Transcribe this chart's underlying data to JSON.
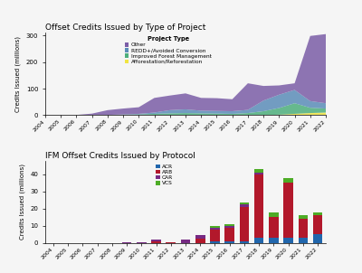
{
  "top_title": "Offset Credits Issued by Type of Project",
  "bottom_title": "IFM Offset Credits Issued by Protocol",
  "years_area": [
    2004,
    2005,
    2006,
    2007,
    2008,
    2009,
    2010,
    2011,
    2012,
    2013,
    2014,
    2015,
    2016,
    2017,
    2018,
    2019,
    2020,
    2021,
    2022
  ],
  "area_afforestation": [
    0,
    0,
    0,
    0,
    0,
    0,
    0,
    0,
    0,
    0,
    0,
    0,
    0,
    0,
    0,
    2,
    5,
    8,
    10
  ],
  "area_ifm": [
    0,
    0,
    0,
    0,
    1,
    2,
    3,
    5,
    7,
    8,
    7,
    6,
    5,
    8,
    15,
    25,
    40,
    20,
    15
  ],
  "area_redd": [
    0,
    0,
    0,
    0,
    0,
    1,
    2,
    5,
    12,
    14,
    10,
    10,
    10,
    12,
    40,
    50,
    50,
    25,
    20
  ],
  "area_other": [
    0,
    0,
    1,
    6,
    18,
    22,
    25,
    55,
    55,
    60,
    48,
    48,
    45,
    100,
    55,
    35,
    25,
    245,
    260
  ],
  "area_colors": [
    "#f0e442",
    "#4daf7c",
    "#5b8db8",
    "#7b5ea7"
  ],
  "area_labels": [
    "Afforestation/Reforestation",
    "Improved Forest Management",
    "REDD+/Avoided Conversion",
    "Other"
  ],
  "area_ylabel": "Credits Issued (millions)",
  "area_ylim": [
    0,
    310
  ],
  "area_yticks": [
    0,
    100,
    200,
    300
  ],
  "years_bar": [
    2004,
    2005,
    2006,
    2007,
    2008,
    2009,
    2010,
    2011,
    2012,
    2013,
    2014,
    2015,
    2016,
    2017,
    2018,
    2019,
    2020,
    2021,
    2022
  ],
  "bar_acr": [
    0,
    0,
    0,
    0,
    0,
    0,
    0,
    0,
    0,
    0,
    0,
    1,
    1,
    1,
    3,
    3,
    3,
    3,
    5
  ],
  "bar_arb": [
    0,
    0,
    0,
    0,
    0,
    0,
    0,
    0.7,
    0.5,
    0,
    2.5,
    7,
    8,
    20,
    37,
    12,
    32,
    11,
    11
  ],
  "bar_car": [
    0,
    0,
    0,
    0,
    0,
    0.5,
    0.5,
    1.2,
    0,
    2,
    2,
    1,
    1,
    1.5,
    1,
    0,
    0,
    0,
    0
  ],
  "bar_vcs": [
    0,
    0,
    0,
    0,
    0,
    0,
    0,
    0,
    0,
    0,
    0,
    1,
    1,
    1,
    2,
    3,
    3,
    2,
    2
  ],
  "bar_colors": [
    "#2166ac",
    "#b2182b",
    "#762a83",
    "#4dac26"
  ],
  "bar_labels": [
    "ACR",
    "ARB",
    "CAR",
    "VCS"
  ],
  "bar_ylabel": "Credits Issued (millions)",
  "bar_ylim": [
    0,
    48
  ],
  "bar_yticks": [
    0,
    10,
    20,
    30,
    40
  ],
  "background_color": "#f5f5f5",
  "legend_title_top": "Project Type"
}
